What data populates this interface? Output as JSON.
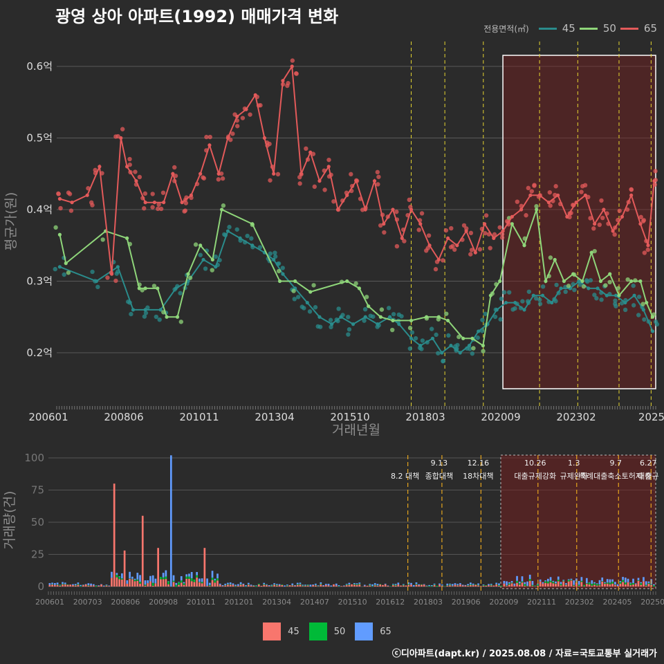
{
  "title": "광영 상아 아파트(1992) 매매가격 변화",
  "legend": {
    "title": "전용면적(㎡)",
    "items": [
      {
        "label": "45",
        "color": "#2a8c8c"
      },
      {
        "label": "50",
        "color": "#8fd67a"
      },
      {
        "label": "65",
        "color": "#e35a5a"
      }
    ]
  },
  "bar_legend": [
    {
      "label": "45",
      "color": "#f8766d"
    },
    {
      "label": "50",
      "color": "#00ba38"
    },
    {
      "label": "65",
      "color": "#619cff"
    }
  ],
  "caption": "ⓒ디아파트(dapt.kr) / 2025.08.08 / 자료=국토교통부 실거래가",
  "chart_data": [
    {
      "type": "line",
      "title": "광영 상아 아파트(1992) 매매가격 변화",
      "xlabel": "거래년월",
      "ylabel": "평균가(원)",
      "x_ticks": [
        "200601",
        "200806",
        "201011",
        "201304",
        "201510",
        "201803",
        "202009",
        "202302",
        "2025"
      ],
      "y_ticks": [
        {
          "value": 0.2,
          "label": "0.2억"
        },
        {
          "value": 0.3,
          "label": "0.3억"
        },
        {
          "value": 0.4,
          "label": "0.4억"
        },
        {
          "value": 0.5,
          "label": "0.5억"
        },
        {
          "value": 0.6,
          "label": "0.6억"
        }
      ],
      "ylim": [
        0.13,
        0.63
      ],
      "xlim": [
        2006.0,
        2025.6
      ],
      "grid": true,
      "legend_position": "top-right",
      "event_lines": [
        2017.6,
        2018.7,
        2019.96,
        2021.8,
        2023.05,
        2024.4,
        2025.45
      ],
      "highlight_region": [
        2020.6,
        2025.6
      ],
      "series": [
        {
          "name": "45",
          "color": "#2a8c8c",
          "x": [
            2006.1,
            2007.3,
            2008.0,
            2008.5,
            2008.9,
            2009.4,
            2009.9,
            2010.3,
            2010.8,
            2011.2,
            2011.6,
            2012.0,
            2012.4,
            2012.8,
            2013.1,
            2013.4,
            2013.8,
            2014.2,
            2014.6,
            2015.0,
            2015.3,
            2015.7,
            2016.1,
            2016.5,
            2016.9,
            2017.2,
            2017.6,
            2017.9,
            2018.3,
            2018.6,
            2018.9,
            2019.2,
            2019.5,
            2019.8,
            2020.1,
            2020.4,
            2020.7,
            2021.0,
            2021.3,
            2021.6,
            2021.9,
            2022.2,
            2022.5,
            2022.8,
            2023.1,
            2023.4,
            2023.7,
            2024.0,
            2024.3,
            2024.6,
            2024.9,
            2025.2,
            2025.5
          ],
          "y": [
            0.32,
            0.3,
            0.32,
            0.26,
            0.26,
            0.26,
            0.29,
            0.3,
            0.33,
            0.32,
            0.37,
            0.36,
            0.35,
            0.34,
            0.33,
            0.31,
            0.29,
            0.27,
            0.25,
            0.24,
            0.25,
            0.24,
            0.25,
            0.24,
            0.25,
            0.24,
            0.22,
            0.21,
            0.22,
            0.2,
            0.21,
            0.2,
            0.21,
            0.23,
            0.24,
            0.26,
            0.27,
            0.27,
            0.26,
            0.28,
            0.28,
            0.27,
            0.29,
            0.29,
            0.3,
            0.29,
            0.29,
            0.28,
            0.28,
            0.27,
            0.28,
            0.26,
            0.23
          ]
        },
        {
          "name": "50",
          "color": "#8fd67a",
          "x": [
            2006.1,
            2006.3,
            2007.6,
            2008.3,
            2008.7,
            2008.9,
            2009.3,
            2009.6,
            2009.95,
            2010.3,
            2010.7,
            2011.1,
            2011.4,
            2012.4,
            2013.3,
            2013.8,
            2014.3,
            2015.5,
            2015.9,
            2016.2,
            2016.6,
            2017.0,
            2017.6,
            2018.1,
            2018.5,
            2018.8,
            2019.3,
            2019.6,
            2019.95,
            2020.2,
            2020.5,
            2020.9,
            2021.3,
            2021.7,
            2022.0,
            2022.3,
            2022.6,
            2022.9,
            2023.2,
            2023.5,
            2023.8,
            2024.1,
            2024.4,
            2024.8,
            2025.1,
            2025.3,
            2025.5
          ],
          "y": [
            0.365,
            0.325,
            0.37,
            0.36,
            0.29,
            0.29,
            0.29,
            0.25,
            0.25,
            0.31,
            0.35,
            0.33,
            0.4,
            0.38,
            0.3,
            0.3,
            0.285,
            0.3,
            0.29,
            0.265,
            0.25,
            0.245,
            0.245,
            0.25,
            0.25,
            0.245,
            0.22,
            0.22,
            0.21,
            0.28,
            0.3,
            0.38,
            0.35,
            0.4,
            0.3,
            0.33,
            0.3,
            0.31,
            0.3,
            0.34,
            0.3,
            0.31,
            0.28,
            0.3,
            0.3,
            0.27,
            0.25
          ]
        },
        {
          "name": "65",
          "color": "#e35a5a",
          "x": [
            2006.1,
            2006.5,
            2007.0,
            2007.4,
            2007.8,
            2008.1,
            2008.3,
            2008.6,
            2008.9,
            2009.2,
            2009.5,
            2009.8,
            2010.1,
            2010.4,
            2010.7,
            2011.0,
            2011.3,
            2011.6,
            2011.9,
            2012.2,
            2012.5,
            2012.8,
            2013.1,
            2013.4,
            2013.7,
            2014.0,
            2014.3,
            2014.6,
            2014.9,
            2015.2,
            2015.5,
            2015.8,
            2016.1,
            2016.4,
            2016.7,
            2017.0,
            2017.3,
            2017.6,
            2017.9,
            2018.2,
            2018.5,
            2018.8,
            2019.1,
            2019.4,
            2019.7,
            2020.0,
            2020.3,
            2020.6,
            2020.9,
            2021.2,
            2021.5,
            2021.8,
            2022.1,
            2022.4,
            2022.7,
            2023.0,
            2023.3,
            2023.6,
            2023.9,
            2024.2,
            2024.5,
            2024.8,
            2025.1,
            2025.35,
            2025.55
          ],
          "y": [
            0.415,
            0.41,
            0.42,
            0.46,
            0.31,
            0.5,
            0.46,
            0.44,
            0.41,
            0.41,
            0.41,
            0.45,
            0.41,
            0.42,
            0.45,
            0.49,
            0.45,
            0.5,
            0.53,
            0.54,
            0.56,
            0.5,
            0.45,
            0.58,
            0.6,
            0.45,
            0.48,
            0.44,
            0.46,
            0.4,
            0.42,
            0.44,
            0.4,
            0.44,
            0.38,
            0.4,
            0.36,
            0.4,
            0.38,
            0.35,
            0.33,
            0.36,
            0.35,
            0.37,
            0.34,
            0.38,
            0.36,
            0.37,
            0.39,
            0.4,
            0.42,
            0.42,
            0.41,
            0.42,
            0.39,
            0.41,
            0.42,
            0.38,
            0.4,
            0.37,
            0.39,
            0.42,
            0.38,
            0.35,
            0.44
          ]
        }
      ]
    },
    {
      "type": "bar",
      "ylabel": "거래량(건)",
      "ylim": [
        0,
        103
      ],
      "y_ticks": [
        0,
        25,
        50,
        75,
        100
      ],
      "x_ticks": [
        "200601",
        "200703",
        "200806",
        "200908",
        "201011",
        "201201",
        "201304",
        "201407",
        "201510",
        "201612",
        "201803",
        "201906",
        "202009",
        "202111",
        "202302",
        "202405",
        "202507"
      ],
      "grid": true,
      "events": [
        {
          "x": 2017.6,
          "date": "",
          "text": "8.2 대책"
        },
        {
          "x": 2018.7,
          "date": "9.13",
          "text": "종합대책"
        },
        {
          "x": 2019.96,
          "date": "12.16",
          "text": "18차대책"
        },
        {
          "x": 2021.8,
          "date": "10.26",
          "text": "대출규제강화"
        },
        {
          "x": 2023.05,
          "date": "1.3",
          "text": "규제완화"
        },
        {
          "x": 2024.4,
          "date": "9.7",
          "text": "특례대출축소토허제 해"
        },
        {
          "x": 2025.45,
          "date": "6.27",
          "text": "대출규"
        }
      ],
      "highlight_region": [
        2020.6,
        2025.6
      ],
      "series": [
        {
          "name": "45",
          "color": "#f8766d"
        },
        {
          "name": "50",
          "color": "#00ba38"
        },
        {
          "name": "65",
          "color": "#619cff"
        }
      ],
      "peaks": [
        {
          "x": 2008.2,
          "values": [
            80,
            0,
            0
          ]
        },
        {
          "x": 2008.5,
          "values": [
            28,
            0,
            0
          ]
        },
        {
          "x": 2009.1,
          "values": [
            55,
            0,
            0
          ]
        },
        {
          "x": 2009.6,
          "values": [
            30,
            0,
            0
          ]
        },
        {
          "x": 2010.0,
          "values": [
            0,
            0,
            102
          ]
        },
        {
          "x": 2011.1,
          "values": [
            30,
            0,
            0
          ]
        }
      ]
    }
  ]
}
